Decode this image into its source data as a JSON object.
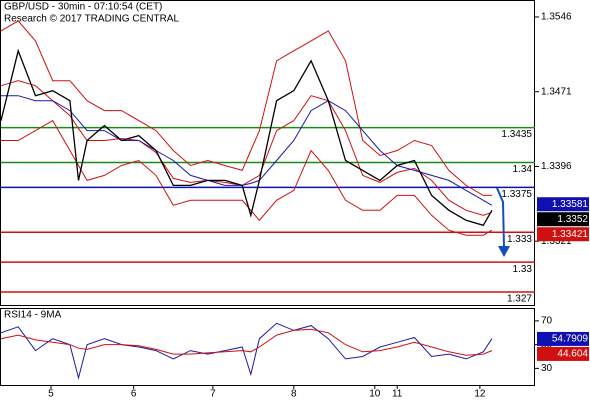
{
  "chart_data": [
    {
      "type": "line",
      "title": "GBP/USD - 30min - 07:10:54 (CET)",
      "subtitle": "Research © 2017 TRADING CENTRAL",
      "x": [
        0,
        10,
        20,
        30,
        40,
        45,
        50,
        60,
        70,
        80,
        90,
        100,
        110,
        120,
        130,
        140,
        145,
        150,
        160,
        170,
        180,
        190,
        200,
        210,
        220,
        230,
        240,
        250,
        260,
        270,
        280,
        285
      ],
      "xlim": [
        0,
        310
      ],
      "ylim": [
        1.3257,
        1.3562
      ],
      "yticks": [
        1.3321,
        1.3396,
        1.3471,
        1.3546
      ],
      "series": [
        {
          "color": "#d01010",
          "values": [
            1.3532,
            1.3542,
            1.3522,
            1.3482,
            1.3482,
            1.3472,
            1.3462,
            1.3452,
            1.3452,
            1.3442,
            1.3432,
            1.3412,
            1.3397,
            1.3402,
            1.3397,
            1.3392,
            1.3412,
            1.3432,
            1.3502,
            1.3512,
            1.3522,
            1.3532,
            1.3502,
            1.3422,
            1.3407,
            1.3412,
            1.3422,
            1.3417,
            1.3392,
            1.3377,
            1.3367,
            1.3367
          ]
        },
        {
          "color": "#d01010",
          "values": [
            1.3422,
            1.3422,
            1.3432,
            1.3442,
            1.3412,
            1.3397,
            1.3382,
            1.3387,
            1.3397,
            1.3402,
            1.3387,
            1.3357,
            1.3362,
            1.3362,
            1.3362,
            1.3362,
            1.3352,
            1.3342,
            1.3362,
            1.3372,
            1.3412,
            1.3392,
            1.3362,
            1.3352,
            1.3352,
            1.3367,
            1.3367,
            1.3347,
            1.3332,
            1.3327,
            1.3327,
            1.3332
          ]
        },
        {
          "color": "#d01010",
          "values": [
            1.3477,
            1.3482,
            1.3477,
            1.3462,
            1.3447,
            1.3434,
            1.3422,
            1.3422,
            1.3424,
            1.3422,
            1.341,
            1.3384,
            1.338,
            1.3382,
            1.338,
            1.3377,
            1.3382,
            1.3387,
            1.3432,
            1.3442,
            1.3467,
            1.3462,
            1.3432,
            1.3387,
            1.338,
            1.339,
            1.3394,
            1.3382,
            1.3362,
            1.3352,
            1.3347,
            1.335
          ]
        },
        {
          "color": "#1a1aa6",
          "values": [
            1.3467,
            1.3467,
            1.3462,
            1.3462,
            1.3452,
            1.3442,
            1.3432,
            1.3432,
            1.3422,
            1.3422,
            1.3412,
            1.3402,
            1.3387,
            1.3382,
            1.3377,
            1.3377,
            1.3379,
            1.3382,
            1.3402,
            1.3422,
            1.3452,
            1.3462,
            1.3452,
            1.3432,
            1.3412,
            1.3397,
            1.3392,
            1.3387,
            1.3382,
            1.3372,
            1.3362,
            1.3357
          ]
        },
        {
          "color": "#000000",
          "values": [
            1.3442,
            1.3512,
            1.3467,
            1.3472,
            1.3462,
            1.3382,
            1.3422,
            1.3437,
            1.3422,
            1.3427,
            1.3412,
            1.3377,
            1.3377,
            1.3382,
            1.3382,
            1.3377,
            1.3347,
            1.3382,
            1.3462,
            1.3472,
            1.3502,
            1.3462,
            1.3402,
            1.3392,
            1.3382,
            1.3397,
            1.3402,
            1.3367,
            1.3352,
            1.3342,
            1.3337,
            1.3352
          ]
        }
      ],
      "levels": [
        {
          "value": 1.3435,
          "color": "#1a8a1a"
        },
        {
          "value": 1.34,
          "color": "#1a8a1a"
        },
        {
          "value": 1.3375,
          "color": "#1010b0"
        },
        {
          "value": 1.333,
          "color": "#d01010"
        },
        {
          "value": 1.33,
          "color": "#d01010"
        },
        {
          "value": 1.327,
          "color": "#d01010"
        }
      ],
      "price_tags": [
        {
          "value": 1.33581,
          "color": "#1010b0"
        },
        {
          "value": 1.3352,
          "color": "#000000"
        },
        {
          "value": 1.33421,
          "color": "#d01010"
        }
      ]
    },
    {
      "type": "line",
      "title": "RSI14 - 9MA",
      "x": [
        0,
        10,
        20,
        30,
        40,
        45,
        50,
        60,
        70,
        80,
        90,
        100,
        110,
        120,
        130,
        140,
        145,
        150,
        160,
        170,
        180,
        190,
        200,
        210,
        220,
        230,
        240,
        250,
        260,
        270,
        280,
        285
      ],
      "xlim": [
        0,
        310
      ],
      "ylim": [
        16,
        80
      ],
      "yticks": [
        30,
        50,
        70
      ],
      "xticks": [
        {
          "value": 29,
          "label": "5"
        },
        {
          "value": 77,
          "label": "6"
        },
        {
          "value": 123,
          "label": "7"
        },
        {
          "value": 170,
          "label": "8"
        },
        {
          "value": 217,
          "label": "10"
        },
        {
          "value": 230,
          "label": "11"
        },
        {
          "value": 278,
          "label": "12"
        }
      ],
      "series": [
        {
          "color": "#1a1aa6",
          "values": [
            60,
            65,
            45,
            55,
            50,
            22,
            50,
            55,
            50,
            48,
            45,
            38,
            45,
            42,
            45,
            48,
            25,
            55,
            68,
            62,
            66,
            55,
            38,
            40,
            48,
            52,
            56,
            40,
            42,
            38,
            44,
            55
          ]
        },
        {
          "color": "#d01010",
          "values": [
            55,
            58,
            54,
            52,
            50,
            47,
            46,
            50,
            50,
            49,
            46,
            42,
            42,
            43,
            44,
            45,
            44,
            48,
            58,
            62,
            63,
            60,
            50,
            44,
            45,
            48,
            52,
            48,
            44,
            41,
            42,
            45
          ]
        }
      ],
      "price_tags": [
        {
          "value": 54.7909,
          "color": "#1010b0"
        },
        {
          "value": 44.604,
          "color": "#d01010"
        }
      ]
    }
  ]
}
